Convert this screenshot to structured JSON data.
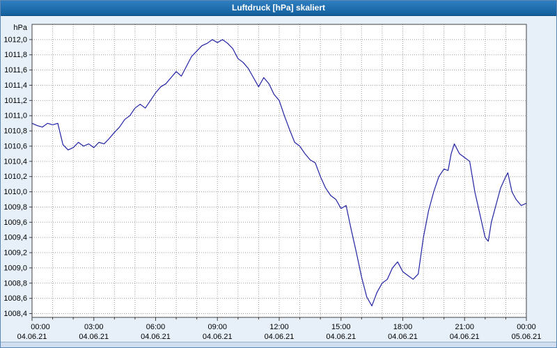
{
  "window": {
    "title": "Luftdruck [hPa] skaliert"
  },
  "chart_data": {
    "type": "line",
    "title": "Luftdruck [hPa] skaliert",
    "ylabel_unit": "hPa",
    "ylim": [
      1008.4,
      1012.0
    ],
    "xlim_hours": [
      0,
      24
    ],
    "grid": "dotted",
    "line_color": "#2121a3",
    "grid_color": "#9a9a9a",
    "plot_bg": "#ffffff",
    "axis_color": "#404040",
    "y_tick_values": [
      1012.0,
      1011.8,
      1011.6,
      1011.4,
      1011.2,
      1011.0,
      1010.8,
      1010.6,
      1010.4,
      1010.2,
      1010.0,
      1009.8,
      1009.6,
      1009.4,
      1009.2,
      1009.0,
      1008.8,
      1008.6,
      1008.4
    ],
    "y_tick_labels": [
      "1012,0",
      "1011,8",
      "1011,6",
      "1011,4",
      "1011,2",
      "1011,0",
      "1010,8",
      "1010,6",
      "1010,4",
      "1010,2",
      "1010,0",
      "1009,8",
      "1009,6",
      "1009,4",
      "1009,2",
      "1009,0",
      "1008,8",
      "1008,6",
      "1008,4"
    ],
    "x_tick_hours": [
      0,
      3,
      6,
      9,
      12,
      15,
      18,
      21,
      24
    ],
    "x_tick_times": [
      "00:00",
      "03:00",
      "06:00",
      "09:00",
      "12:00",
      "15:00",
      "18:00",
      "21:00",
      "00:00"
    ],
    "x_tick_dates": [
      "04.06.21",
      "04.06.21",
      "04.06.21",
      "04.06.21",
      "04.06.21",
      "04.06.21",
      "04.06.21",
      "04.06.21",
      "05.06.21"
    ],
    "points": [
      [
        0,
        1010.9
      ],
      [
        0.25,
        1010.87
      ],
      [
        0.5,
        1010.85
      ],
      [
        0.75,
        1010.9
      ],
      [
        1,
        1010.88
      ],
      [
        1.25,
        1010.9
      ],
      [
        1.5,
        1010.62
      ],
      [
        1.75,
        1010.55
      ],
      [
        2,
        1010.58
      ],
      [
        2.25,
        1010.65
      ],
      [
        2.5,
        1010.6
      ],
      [
        2.75,
        1010.63
      ],
      [
        3,
        1010.58
      ],
      [
        3.25,
        1010.65
      ],
      [
        3.5,
        1010.63
      ],
      [
        3.75,
        1010.7
      ],
      [
        4,
        1010.78
      ],
      [
        4.25,
        1010.85
      ],
      [
        4.5,
        1010.95
      ],
      [
        4.75,
        1011.0
      ],
      [
        5,
        1011.1
      ],
      [
        5.25,
        1011.15
      ],
      [
        5.5,
        1011.1
      ],
      [
        5.75,
        1011.2
      ],
      [
        6,
        1011.3
      ],
      [
        6.25,
        1011.38
      ],
      [
        6.5,
        1011.42
      ],
      [
        6.75,
        1011.5
      ],
      [
        7,
        1011.58
      ],
      [
        7.25,
        1011.52
      ],
      [
        7.5,
        1011.65
      ],
      [
        7.75,
        1011.78
      ],
      [
        8,
        1011.85
      ],
      [
        8.25,
        1011.92
      ],
      [
        8.5,
        1011.95
      ],
      [
        8.75,
        1012.0
      ],
      [
        9,
        1011.96
      ],
      [
        9.25,
        1012.0
      ],
      [
        9.5,
        1011.95
      ],
      [
        9.75,
        1011.88
      ],
      [
        10,
        1011.75
      ],
      [
        10.25,
        1011.7
      ],
      [
        10.5,
        1011.62
      ],
      [
        10.75,
        1011.5
      ],
      [
        11,
        1011.38
      ],
      [
        11.25,
        1011.5
      ],
      [
        11.5,
        1011.42
      ],
      [
        11.75,
        1011.28
      ],
      [
        12,
        1011.2
      ],
      [
        12.25,
        1011.0
      ],
      [
        12.5,
        1010.82
      ],
      [
        12.75,
        1010.65
      ],
      [
        13,
        1010.6
      ],
      [
        13.25,
        1010.5
      ],
      [
        13.5,
        1010.42
      ],
      [
        13.75,
        1010.38
      ],
      [
        14,
        1010.2
      ],
      [
        14.25,
        1010.05
      ],
      [
        14.5,
        1009.95
      ],
      [
        14.75,
        1009.9
      ],
      [
        15,
        1009.78
      ],
      [
        15.25,
        1009.82
      ],
      [
        15.5,
        1009.5
      ],
      [
        15.75,
        1009.2
      ],
      [
        16,
        1008.88
      ],
      [
        16.25,
        1008.62
      ],
      [
        16.5,
        1008.5
      ],
      [
        16.75,
        1008.68
      ],
      [
        17,
        1008.8
      ],
      [
        17.25,
        1008.85
      ],
      [
        17.5,
        1009.0
      ],
      [
        17.75,
        1009.08
      ],
      [
        18,
        1008.95
      ],
      [
        18.25,
        1008.9
      ],
      [
        18.5,
        1008.85
      ],
      [
        18.75,
        1008.92
      ],
      [
        19,
        1009.4
      ],
      [
        19.25,
        1009.75
      ],
      [
        19.5,
        1010.0
      ],
      [
        19.75,
        1010.2
      ],
      [
        20,
        1010.3
      ],
      [
        20.2,
        1010.28
      ],
      [
        20.35,
        1010.5
      ],
      [
        20.5,
        1010.63
      ],
      [
        20.75,
        1010.5
      ],
      [
        21,
        1010.45
      ],
      [
        21.25,
        1010.4
      ],
      [
        21.5,
        1010.0
      ],
      [
        21.75,
        1009.7
      ],
      [
        22,
        1009.4
      ],
      [
        22.15,
        1009.35
      ],
      [
        22.3,
        1009.6
      ],
      [
        22.5,
        1009.8
      ],
      [
        22.75,
        1010.05
      ],
      [
        23,
        1010.2
      ],
      [
        23.1,
        1010.25
      ],
      [
        23.3,
        1010.0
      ],
      [
        23.5,
        1009.9
      ],
      [
        23.75,
        1009.82
      ],
      [
        24,
        1009.85
      ]
    ]
  }
}
